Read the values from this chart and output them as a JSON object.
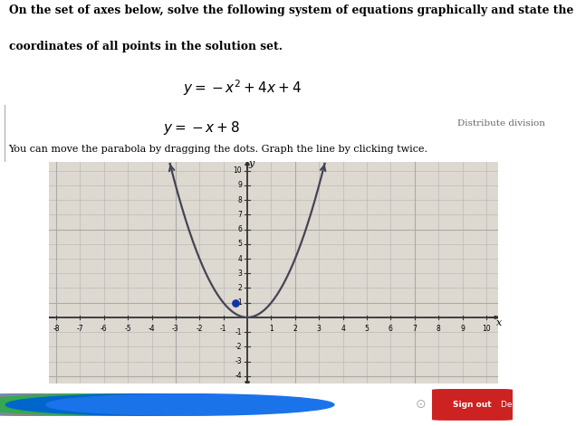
{
  "title_line1": "On the set of axes below, solve the following system of equations graphically and state the",
  "title_line2": "coordinates of all points in the solution set.",
  "eq1_display": "$y = -x^2 + 4x + 4$",
  "eq2_display": "$y = -x + 8$",
  "eq2_label": "Distribute division",
  "instruction": "You can move the parabola by dragging the dots. Graph the line by clicking twice.",
  "white_bg": "#ffffff",
  "graph_bg": "#ddd8d0",
  "page_bg": "#c8c4c0",
  "axis_color": "#333333",
  "parabola_color": "#444455",
  "dot_color": "#1133aa",
  "grid_color": "#bbbbbb",
  "grid_color2": "#cccccc",
  "x_min": -8,
  "x_max": 10,
  "y_min": -4,
  "y_max": 10,
  "dot_x": -0.5,
  "dot_y": 1.0,
  "taskbar_color": "#222222",
  "signin_color": "#cc2222"
}
